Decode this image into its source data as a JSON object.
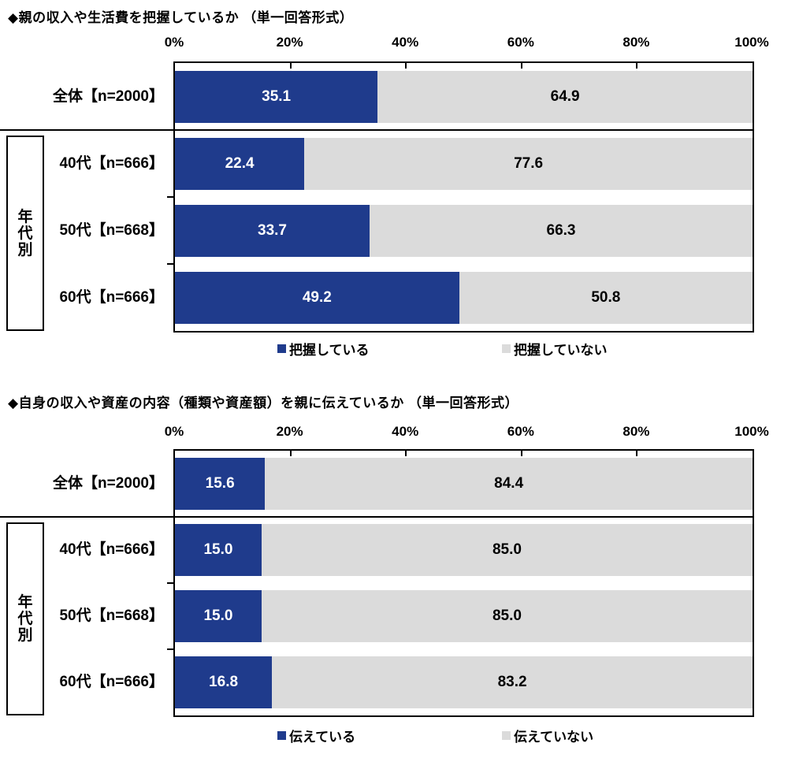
{
  "page": {
    "background": "#ffffff"
  },
  "colors": {
    "series_blue": "#1F3B8C",
    "series_gray": "#DBDBDB",
    "blue_value_text": "#FFFFFF",
    "gray_value_text": "#000000",
    "border": "#000000"
  },
  "chart_data": [
    {
      "type": "bar",
      "orientation": "horizontal",
      "stacked": true,
      "title": "◆親の収入や生活費を把握しているか （単一回答形式）",
      "categories": [
        "全体【n=2000】",
        "40代【n=666】",
        "50代【n=668】",
        "60代【n=666】"
      ],
      "series": [
        {
          "name": "把握している",
          "color": "#1F3B8C",
          "values": [
            35.1,
            22.4,
            33.7,
            49.2
          ]
        },
        {
          "name": "把握していない",
          "color": "#DBDBDB",
          "values": [
            64.9,
            77.6,
            66.3,
            50.8
          ]
        }
      ],
      "xlim": [
        0,
        100
      ],
      "x_tick_labels": [
        "0%",
        "20%",
        "40%",
        "60%",
        "80%",
        "100%"
      ],
      "group_label": "年代別",
      "grouped_categories": [
        "40代【n=666】",
        "50代【n=668】",
        "60代【n=666】"
      ],
      "legend_position": "bottom",
      "value_decimals": 1,
      "grid": false
    },
    {
      "type": "bar",
      "orientation": "horizontal",
      "stacked": true,
      "title": "◆自身の収入や資産の内容（種類や資産額）を親に伝えているか （単一回答形式）",
      "categories": [
        "全体【n=2000】",
        "40代【n=666】",
        "50代【n=668】",
        "60代【n=666】"
      ],
      "series": [
        {
          "name": "伝えている",
          "color": "#1F3B8C",
          "values": [
            15.6,
            15.0,
            15.0,
            16.8
          ]
        },
        {
          "name": "伝えていない",
          "color": "#DBDBDB",
          "values": [
            84.4,
            85.0,
            85.0,
            83.2
          ]
        }
      ],
      "xlim": [
        0,
        100
      ],
      "x_tick_labels": [
        "0%",
        "20%",
        "40%",
        "60%",
        "80%",
        "100%"
      ],
      "group_label": "年代別",
      "grouped_categories": [
        "40代【n=666】",
        "50代【n=668】",
        "60代【n=666】"
      ],
      "legend_position": "bottom",
      "value_decimals": 1,
      "grid": false
    }
  ]
}
